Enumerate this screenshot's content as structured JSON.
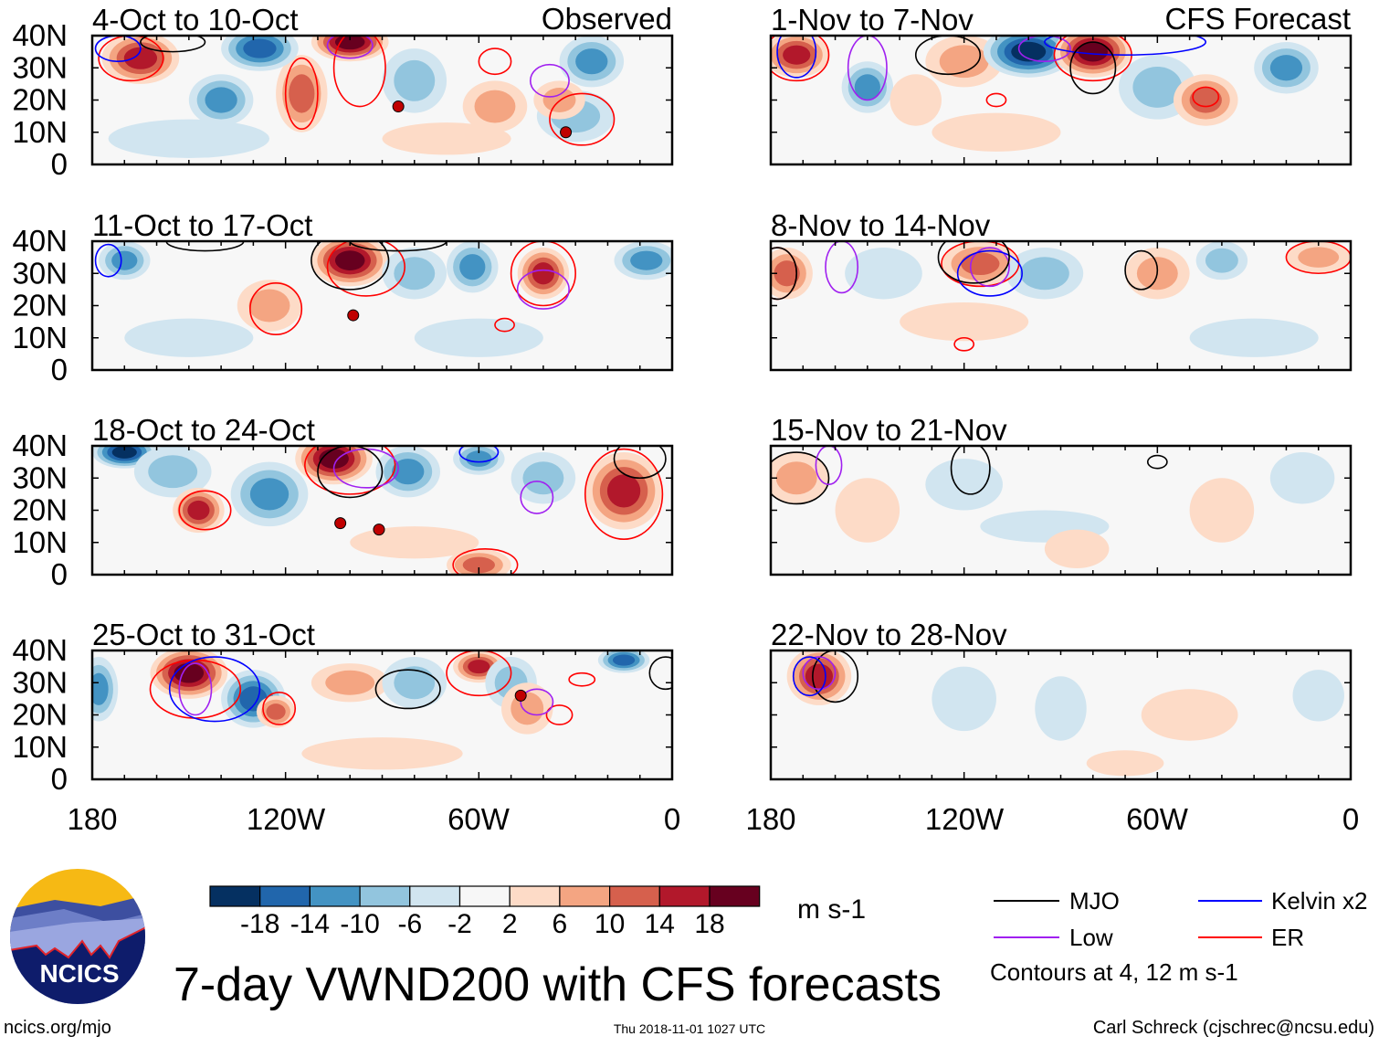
{
  "figure_title": "7-day VWND200 with CFS forecasts",
  "left_header": "Observed",
  "right_header": "CFS Forecast",
  "lat_labels": [
    "40N",
    "30N",
    "20N",
    "10N",
    "0"
  ],
  "lon_labels": [
    "180",
    "120W",
    "60W",
    "0"
  ],
  "lon_ticks_values": [
    180,
    120,
    60,
    0
  ],
  "colorbar": {
    "levels_labels": [
      "-18",
      "-14",
      "-10",
      "-6",
      "-2",
      "2",
      "6",
      "10",
      "14",
      "18"
    ],
    "colors": [
      "#053061",
      "#2166ac",
      "#4393c3",
      "#92c5de",
      "#d1e5f0",
      "#f7f7f7",
      "#fddbc7",
      "#f4a582",
      "#d6604d",
      "#b2182b",
      "#67001f"
    ],
    "units": "m s-1"
  },
  "legend": {
    "items": [
      {
        "label": "MJO",
        "color": "#000000"
      },
      {
        "label": "Kelvin x2",
        "color": "#0000ff"
      },
      {
        "label": "Low",
        "color": "#a020f0"
      },
      {
        "label": "ER",
        "color": "#ff0000"
      }
    ],
    "note": "Contours at 4, 12 m s-1"
  },
  "logo": {
    "text": "NCICS"
  },
  "footer": {
    "url": "ncics.org/mjo",
    "timestamp": "Thu 2018-11-01 1027 UTC",
    "author": "Carl Schreck (cjschrec@ncsu.edu)"
  },
  "panels": [
    {
      "title": "4-Oct to 10-Oct",
      "col": 0,
      "row": 0,
      "blobs": [
        [
          165,
          33,
          14,
          12,
          8
        ],
        [
          140,
          20,
          -10,
          10,
          8
        ],
        [
          115,
          22,
          10,
          8,
          12
        ],
        [
          128,
          36,
          -14,
          12,
          7
        ],
        [
          100,
          38,
          18,
          12,
          6
        ],
        [
          80,
          26,
          -6,
          10,
          10
        ],
        [
          55,
          18,
          6,
          10,
          8
        ],
        [
          30,
          15,
          -6,
          12,
          8
        ],
        [
          25,
          32,
          -10,
          10,
          8
        ],
        [
          35,
          20,
          6,
          8,
          6
        ],
        [
          150,
          8,
          -2,
          25,
          6
        ],
        [
          70,
          8,
          4,
          20,
          5
        ]
      ],
      "contours": [
        [
          "ER",
          168,
          33,
          10,
          7
        ],
        [
          "ER",
          115,
          22,
          5,
          11
        ],
        [
          "ER",
          97,
          30,
          8,
          12
        ],
        [
          "ER",
          28,
          14,
          10,
          8
        ],
        [
          "ER",
          55,
          32,
          5,
          4
        ],
        [
          "Low",
          38,
          26,
          6,
          5
        ],
        [
          "Low",
          100,
          37,
          7,
          4
        ],
        [
          "MJO",
          155,
          38,
          10,
          3
        ],
        [
          "Kelvin",
          172,
          36,
          7,
          4
        ]
      ],
      "storms": [
        [
          85,
          18
        ],
        [
          33,
          10
        ]
      ]
    },
    {
      "title": "11-Oct to 17-Oct",
      "col": 0,
      "row": 1,
      "blobs": [
        [
          170,
          34,
          -10,
          8,
          6
        ],
        [
          125,
          20,
          6,
          10,
          8
        ],
        [
          100,
          34,
          18,
          12,
          8
        ],
        [
          80,
          30,
          -6,
          10,
          8
        ],
        [
          62,
          32,
          -10,
          8,
          8
        ],
        [
          40,
          30,
          14,
          8,
          8
        ],
        [
          8,
          34,
          -10,
          10,
          6
        ],
        [
          150,
          10,
          -2,
          20,
          6
        ],
        [
          60,
          10,
          -2,
          20,
          6
        ]
      ],
      "contours": [
        [
          "ER",
          123,
          19,
          8,
          8
        ],
        [
          "ER",
          95,
          32,
          12,
          9
        ],
        [
          "ER",
          40,
          30,
          10,
          10
        ],
        [
          "ER",
          52,
          14,
          3,
          2
        ],
        [
          "Low",
          40,
          25,
          8,
          6
        ],
        [
          "Kelvin",
          175,
          34,
          4,
          5
        ],
        [
          "MJO",
          100,
          34,
          12,
          9
        ],
        [
          "MJO",
          85,
          40,
          15,
          3
        ],
        [
          "MJO",
          145,
          40,
          12,
          3
        ]
      ],
      "storms": [
        [
          99,
          17
        ]
      ]
    },
    {
      "title": "18-Oct to 24-Oct",
      "col": 0,
      "row": 2,
      "blobs": [
        [
          170,
          38,
          -18,
          10,
          5
        ],
        [
          155,
          32,
          -6,
          12,
          8
        ],
        [
          147,
          20,
          14,
          8,
          7
        ],
        [
          125,
          25,
          -10,
          12,
          10
        ],
        [
          105,
          36,
          18,
          12,
          8
        ],
        [
          82,
          32,
          -10,
          10,
          8
        ],
        [
          60,
          36,
          -10,
          8,
          5
        ],
        [
          40,
          30,
          -6,
          10,
          8
        ],
        [
          15,
          26,
          14,
          12,
          12
        ],
        [
          60,
          3,
          10,
          10,
          5
        ],
        [
          80,
          10,
          4,
          20,
          5
        ]
      ],
      "contours": [
        [
          "ER",
          145,
          20,
          8,
          6
        ],
        [
          "ER",
          100,
          34,
          14,
          9
        ],
        [
          "ER",
          15,
          25,
          12,
          14
        ],
        [
          "ER",
          58,
          3,
          10,
          5
        ],
        [
          "Low",
          42,
          24,
          5,
          5
        ],
        [
          "Low",
          95,
          33,
          10,
          6
        ],
        [
          "MJO",
          100,
          32,
          10,
          8
        ],
        [
          "MJO",
          10,
          36,
          8,
          6
        ],
        [
          "Kelvin",
          60,
          38,
          6,
          3
        ]
      ],
      "storms": [
        [
          103,
          16
        ],
        [
          91,
          14
        ]
      ]
    },
    {
      "title": "25-Oct to 31-Oct",
      "col": 0,
      "row": 3,
      "blobs": [
        [
          178,
          28,
          -10,
          6,
          10
        ],
        [
          150,
          33,
          18,
          12,
          8
        ],
        [
          130,
          25,
          -14,
          10,
          9
        ],
        [
          123,
          21,
          10,
          6,
          5
        ],
        [
          100,
          30,
          6,
          12,
          6
        ],
        [
          80,
          30,
          -6,
          10,
          8
        ],
        [
          60,
          35,
          14,
          8,
          5
        ],
        [
          50,
          30,
          -6,
          8,
          8
        ],
        [
          45,
          22,
          6,
          8,
          8
        ],
        [
          15,
          37,
          -14,
          8,
          4
        ],
        [
          90,
          8,
          4,
          25,
          5
        ]
      ],
      "contours": [
        [
          "ER",
          148,
          28,
          14,
          9
        ],
        [
          "ER",
          122,
          22,
          5,
          5
        ],
        [
          "ER",
          60,
          33,
          10,
          7
        ],
        [
          "ER",
          35,
          20,
          4,
          3
        ],
        [
          "ER",
          28,
          31,
          4,
          2
        ],
        [
          "Low",
          148,
          28,
          5,
          8
        ],
        [
          "Low",
          42,
          24,
          5,
          4
        ],
        [
          "Kelvin",
          142,
          28,
          14,
          10
        ],
        [
          "MJO",
          82,
          28,
          10,
          6
        ],
        [
          "MJO",
          2,
          33,
          5,
          5
        ]
      ],
      "storms": [
        [
          47,
          26
        ]
      ]
    },
    {
      "title": "1-Nov to 7-Nov",
      "col": 1,
      "row": 0,
      "blobs": [
        [
          172,
          34,
          14,
          10,
          7
        ],
        [
          150,
          24,
          -10,
          8,
          8
        ],
        [
          135,
          20,
          4,
          8,
          8
        ],
        [
          120,
          32,
          6,
          12,
          8
        ],
        [
          100,
          35,
          -18,
          14,
          8
        ],
        [
          80,
          35,
          18,
          12,
          8
        ],
        [
          60,
          24,
          -6,
          12,
          10
        ],
        [
          45,
          20,
          10,
          10,
          8
        ],
        [
          20,
          30,
          -10,
          10,
          8
        ],
        [
          110,
          10,
          4,
          20,
          6
        ]
      ],
      "contours": [
        [
          "ER",
          172,
          34,
          10,
          8
        ],
        [
          "ER",
          80,
          34,
          12,
          8
        ],
        [
          "ER",
          45,
          21,
          4,
          3
        ],
        [
          "ER",
          110,
          20,
          3,
          2
        ],
        [
          "Low",
          150,
          30,
          6,
          10
        ],
        [
          "Low",
          95,
          36,
          8,
          4
        ],
        [
          "Kelvin",
          172,
          35,
          6,
          8
        ],
        [
          "Kelvin",
          70,
          38,
          25,
          4
        ],
        [
          "MJO",
          80,
          30,
          7,
          8
        ],
        [
          "MJO",
          125,
          34,
          10,
          6
        ]
      ],
      "storms": []
    },
    {
      "title": "8-Nov to 14-Nov",
      "col": 1,
      "row": 1,
      "blobs": [
        [
          175,
          30,
          10,
          8,
          8
        ],
        [
          145,
          30,
          -2,
          12,
          8
        ],
        [
          115,
          33,
          10,
          12,
          7
        ],
        [
          95,
          30,
          -6,
          12,
          8
        ],
        [
          60,
          30,
          6,
          10,
          8
        ],
        [
          40,
          34,
          -6,
          8,
          6
        ],
        [
          10,
          35,
          6,
          10,
          5
        ],
        [
          120,
          15,
          2,
          20,
          6
        ],
        [
          30,
          10,
          -2,
          20,
          6
        ]
      ],
      "contours": [
        [
          "ER",
          178,
          30,
          6,
          8
        ],
        [
          "ER",
          115,
          33,
          12,
          7
        ],
        [
          "ER",
          120,
          8,
          3,
          2
        ],
        [
          "ER",
          10,
          35,
          10,
          5
        ],
        [
          "Low",
          158,
          32,
          5,
          8
        ],
        [
          "Low",
          112,
          32,
          6,
          6
        ],
        [
          "Kelvin",
          112,
          30,
          10,
          7
        ],
        [
          "MJO",
          117,
          35,
          11,
          8
        ],
        [
          "MJO",
          65,
          31,
          5,
          6
        ],
        [
          "MJO",
          178,
          30,
          6,
          8
        ]
      ],
      "storms": []
    },
    {
      "title": "15-Nov to 21-Nov",
      "col": 1,
      "row": 2,
      "blobs": [
        [
          172,
          30,
          6,
          10,
          8
        ],
        [
          150,
          20,
          2,
          10,
          10
        ],
        [
          120,
          28,
          -2,
          12,
          8
        ],
        [
          95,
          15,
          -2,
          20,
          5
        ],
        [
          85,
          8,
          4,
          10,
          6
        ],
        [
          40,
          20,
          2,
          10,
          10
        ],
        [
          15,
          30,
          -2,
          10,
          8
        ]
      ],
      "contours": [
        [
          "MJO",
          172,
          30,
          10,
          8
        ],
        [
          "Low",
          162,
          34,
          4,
          6
        ],
        [
          "MJO",
          118,
          33,
          6,
          8
        ],
        [
          "MJO",
          60,
          35,
          3,
          2
        ]
      ],
      "storms": []
    },
    {
      "title": "22-Nov to 28-Nov",
      "col": 1,
      "row": 3,
      "blobs": [
        [
          165,
          32,
          14,
          10,
          9
        ],
        [
          120,
          25,
          -2,
          10,
          10
        ],
        [
          90,
          22,
          -2,
          8,
          10
        ],
        [
          50,
          20,
          2,
          15,
          8
        ],
        [
          10,
          26,
          -2,
          8,
          8
        ],
        [
          70,
          5,
          2,
          12,
          4
        ]
      ],
      "contours": [
        [
          "MJO",
          160,
          32,
          7,
          8
        ],
        [
          "Low",
          165,
          33,
          5,
          5
        ],
        [
          "Kelvin",
          168,
          32,
          5,
          6
        ]
      ],
      "storms": []
    }
  ]
}
